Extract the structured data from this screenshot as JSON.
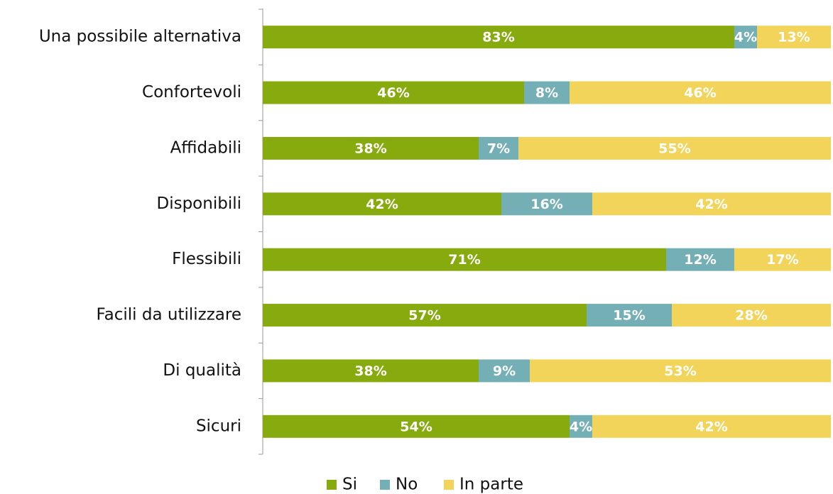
{
  "chart_data": {
    "type": "stacked_bar_horizontal",
    "categories": [
      "Una possibile alternativa",
      "Confortevoli",
      "Affidabili",
      "Disponibili",
      "Flessibili",
      "Facili da utilizzare",
      "Di qualità",
      "Sicuri"
    ],
    "xlim": [
      0,
      100
    ],
    "legend": "bottom",
    "series": [
      {
        "name": "Si",
        "color": "#87aa0e",
        "values": [
          83,
          46,
          38,
          42,
          71,
          57,
          38,
          54
        ],
        "value_labels": [
          "83%",
          "46%",
          "38%",
          "42%",
          "71%",
          "57%",
          "38%",
          "54%"
        ]
      },
      {
        "name": "No",
        "color": "#74afb6",
        "values": [
          4,
          8,
          7,
          16,
          12,
          15,
          9,
          4
        ],
        "value_labels": [
          "4%",
          "8%",
          "7%",
          "16%",
          "12%",
          "15%",
          "9%",
          "4%"
        ]
      },
      {
        "name": "In parte",
        "color": "#f2d45a",
        "values": [
          13,
          46,
          55,
          42,
          17,
          28,
          53,
          42
        ],
        "value_labels": [
          "13%",
          "46%",
          "55%",
          "42%",
          "17%",
          "28%",
          "53%",
          "42%"
        ]
      }
    ]
  }
}
